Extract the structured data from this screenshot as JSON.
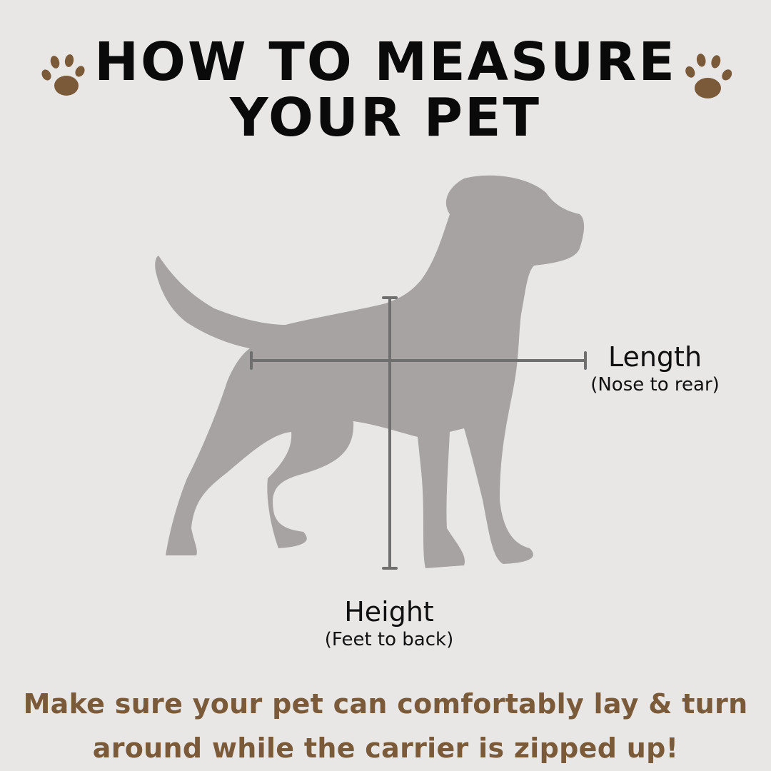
{
  "title": {
    "line1": "HOW TO MEASURE",
    "line2": "YOUR PET"
  },
  "icons": {
    "left": "paw-print-icon",
    "right": "paw-print-icon",
    "figure": "dog-silhouette"
  },
  "colors": {
    "background": "#e8e7e6",
    "paw": "#7b5a3a",
    "dog": "#a7a3a2",
    "measure_line": "#6f6f6f",
    "note": "#7a5a39"
  },
  "length": {
    "label": "Length",
    "detail": "(Nose to rear)"
  },
  "height": {
    "label": "Height",
    "detail": "(Feet to back)"
  },
  "note": {
    "line1": "Make sure your pet can comfortably lay & turn",
    "line2": "around while the carrier is zipped up!"
  }
}
